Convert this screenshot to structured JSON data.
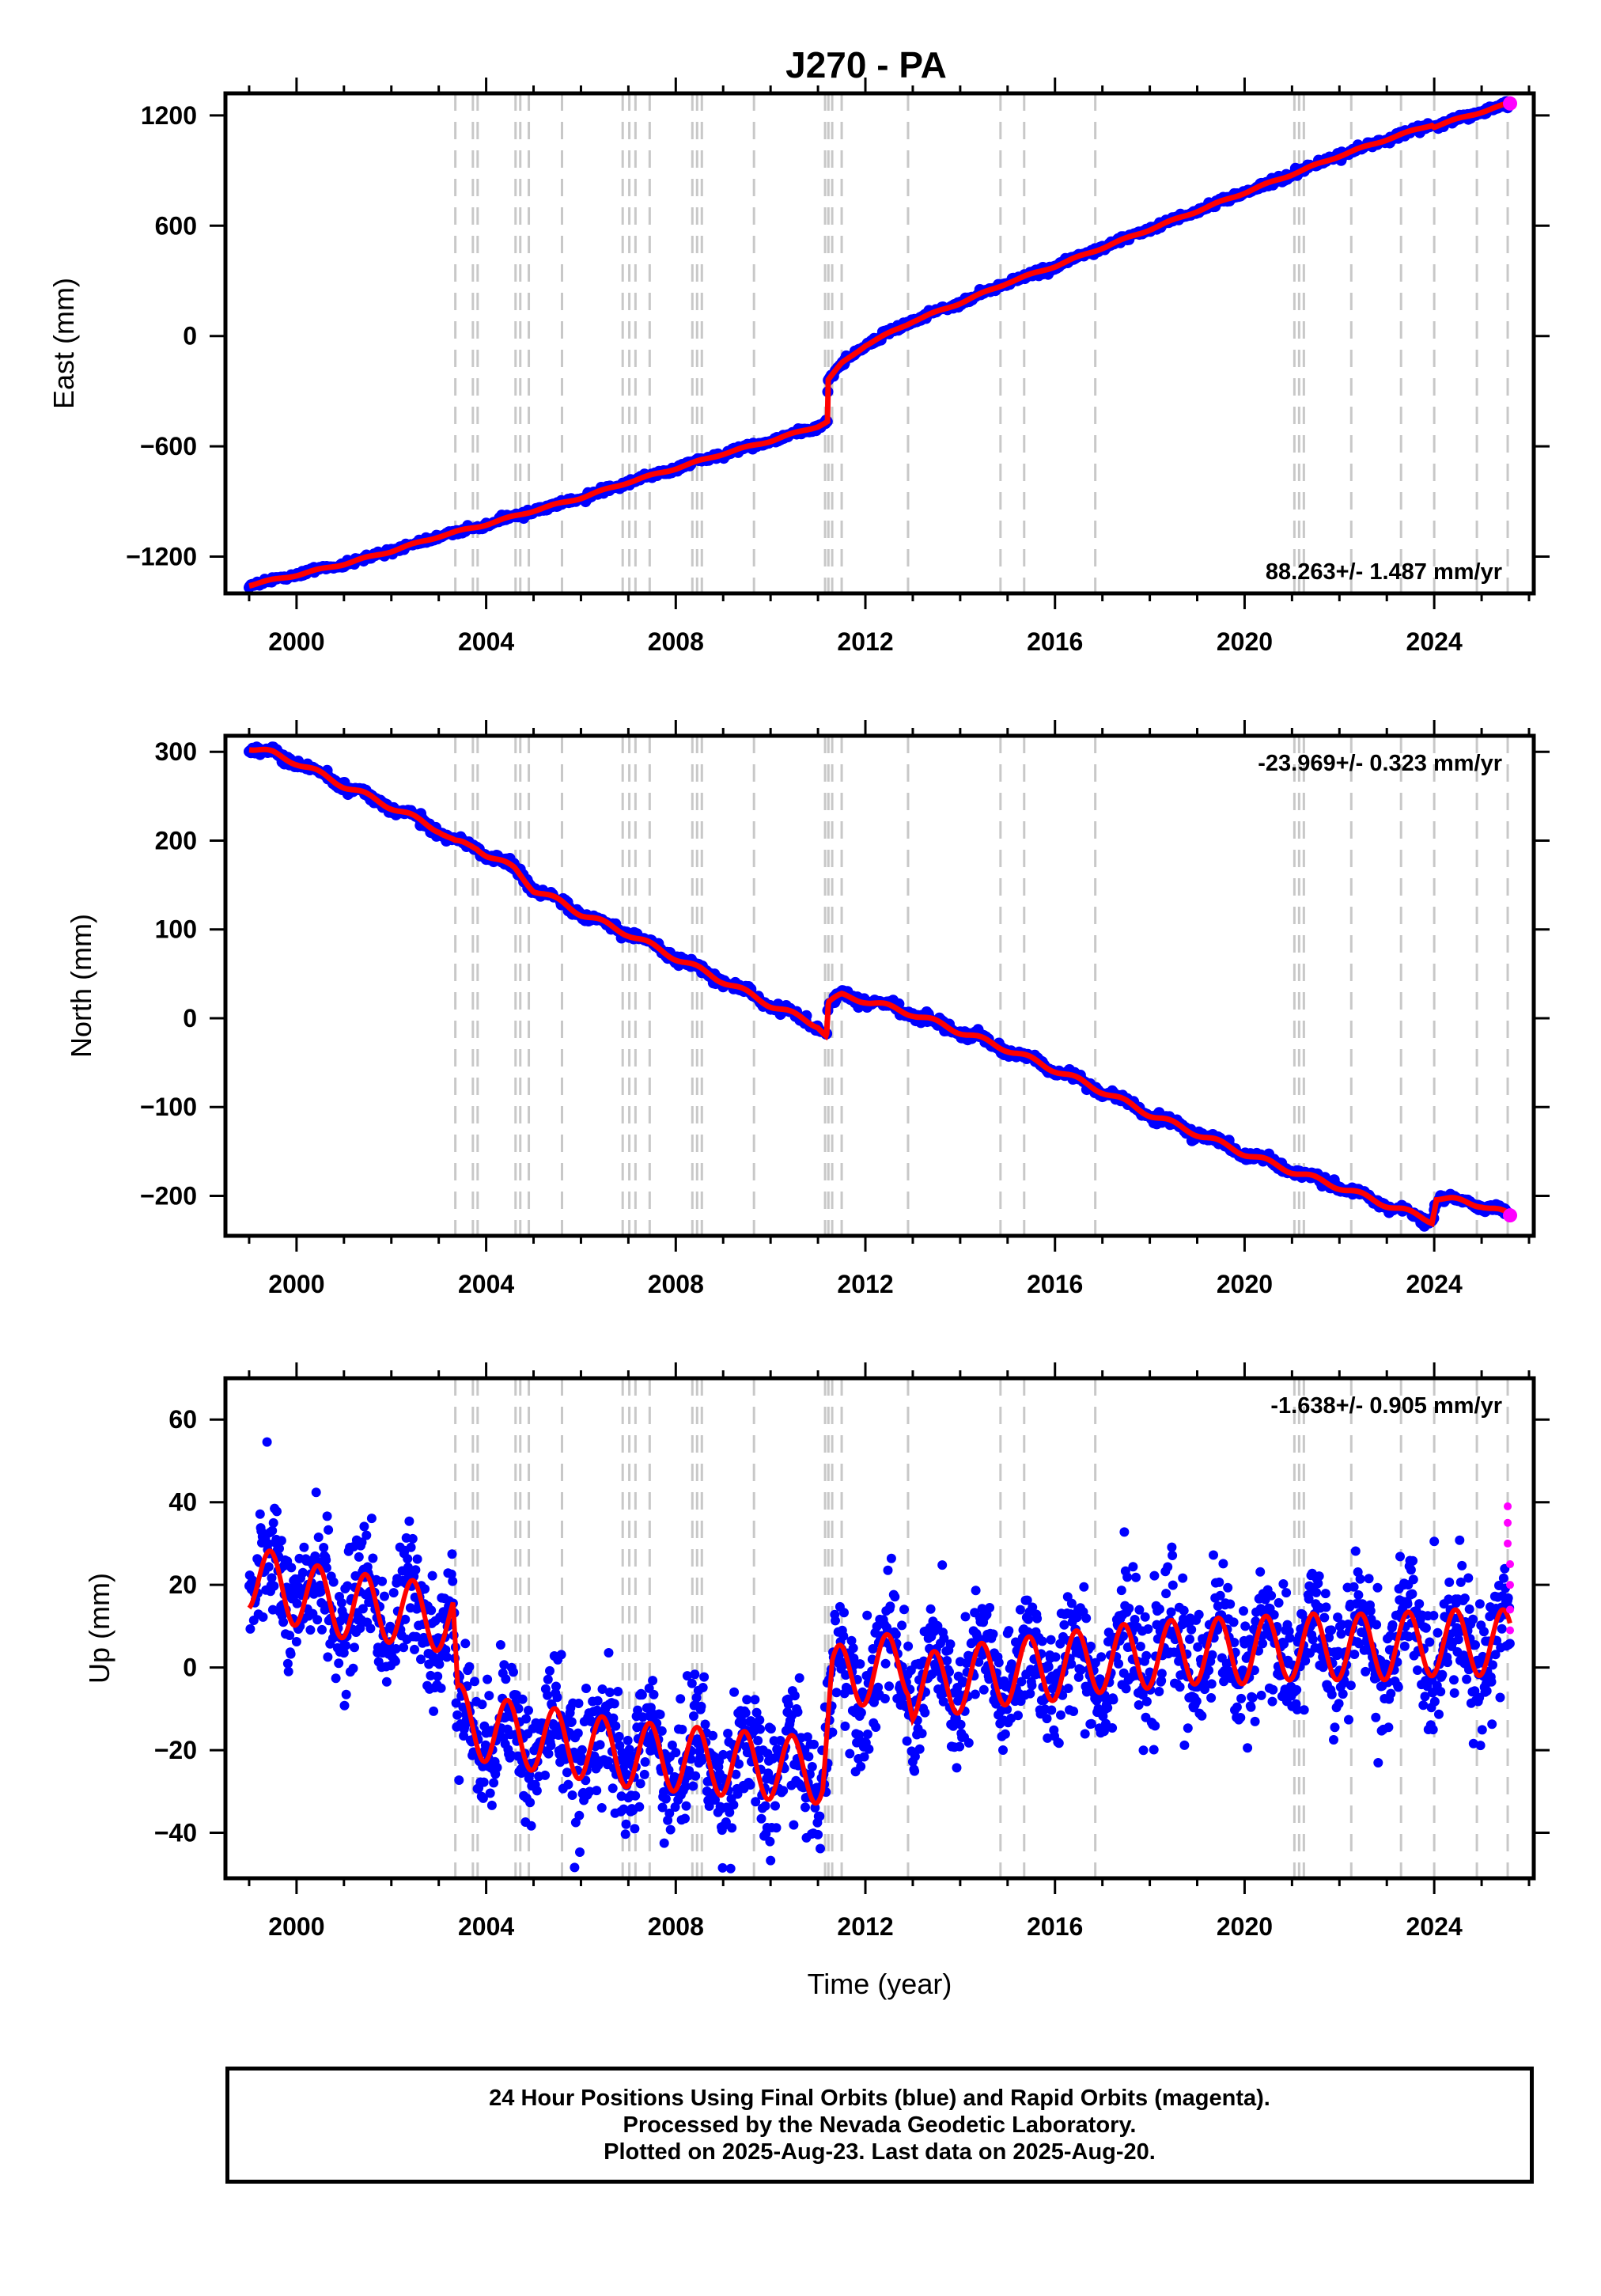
{
  "title": "J270 - PA",
  "caption": {
    "line1": "24 Hour Positions Using Final Orbits (blue) and Rapid Orbits (magenta).",
    "line2": "Processed by the Nevada Geodetic Laboratory.",
    "line3": "Plotted on 2025-Aug-23. Last data on 2025-Aug-20."
  },
  "colors": {
    "final_orbits": "#0000ff",
    "rapid_orbits": "#ff00ff",
    "model": "#ff0000",
    "event_lines": "#c8c8c8"
  },
  "event_years": [
    2003.35,
    2003.72,
    2003.82,
    2004.62,
    2004.72,
    2004.9,
    2005.6,
    2006.88,
    2007.02,
    2007.15,
    2007.45,
    2008.35,
    2008.45,
    2008.55,
    2009.65,
    2011.15,
    2011.22,
    2011.3,
    2011.5,
    2012.9,
    2014.85,
    2015.35,
    2016.85,
    2021.05,
    2021.15,
    2021.25,
    2022.25,
    2023.3,
    2024.0,
    2024.9,
    2025.55
  ],
  "chart_data": [
    {
      "type": "scatter",
      "panel": "east",
      "title": "J270 - PA",
      "xlabel": "",
      "ylabel": "East (mm)",
      "xlim": [
        1998.5,
        2026.1
      ],
      "ylim": [
        -1400,
        1320
      ],
      "xticks": [
        2000,
        2004,
        2008,
        2012,
        2016,
        2020,
        2024
      ],
      "yticks": [
        -1200,
        -600,
        0,
        600,
        1200
      ],
      "ytick_labels": [
        "−1200",
        "−600",
        "0",
        "600",
        "1200"
      ],
      "rate_text": "88.263+/- 1.487 mm/yr",
      "rate_position": "bottom-right",
      "grid": false,
      "series": [
        {
          "values": [
            [
              1999.0,
              -1355
            ],
            [
              2000.0,
              -1300
            ],
            [
              2001.0,
              -1240
            ],
            [
              2002.0,
              -1170
            ],
            [
              2003.0,
              -1090
            ],
            [
              2004.0,
              -1025
            ],
            [
              2005.0,
              -950
            ],
            [
              2006.0,
              -880
            ],
            [
              2007.0,
              -795
            ],
            [
              2008.0,
              -720
            ],
            [
              2009.0,
              -640
            ],
            [
              2010.0,
              -570
            ],
            [
              2011.0,
              -490
            ],
            [
              2011.2,
              -465
            ],
            [
              2011.21,
              -240
            ],
            [
              2011.5,
              -150
            ],
            [
              2012.0,
              -50
            ],
            [
              2013.0,
              80
            ],
            [
              2014.0,
              180
            ],
            [
              2015.0,
              290
            ],
            [
              2016.0,
              380
            ],
            [
              2017.0,
              480
            ],
            [
              2018.0,
              580
            ],
            [
              2019.0,
              680
            ],
            [
              2020.0,
              780
            ],
            [
              2021.0,
              880
            ],
            [
              2022.0,
              980
            ],
            [
              2023.0,
              1070
            ],
            [
              2023.95,
              1150
            ],
            [
              2024.0,
              1140
            ],
            [
              2025.0,
              1220
            ],
            [
              2025.6,
              1265
            ]
          ]
        }
      ]
    },
    {
      "type": "scatter",
      "panel": "north",
      "xlabel": "",
      "ylabel": "North (mm)",
      "xlim": [
        1998.5,
        2026.1
      ],
      "ylim": [
        -245,
        318
      ],
      "xticks": [
        2000,
        2004,
        2008,
        2012,
        2016,
        2020,
        2024
      ],
      "yticks": [
        -200,
        -100,
        0,
        100,
        200,
        300
      ],
      "ytick_labels": [
        "−200",
        "−100",
        "0",
        "100",
        "200",
        "300"
      ],
      "rate_text": "-23.969+/- 0.323 mm/yr",
      "rate_position": "top-right",
      "grid": false,
      "series": [
        {
          "values": [
            [
              1999.0,
              305
            ],
            [
              1999.5,
              298
            ],
            [
              2000.0,
              288
            ],
            [
              2001.0,
              262
            ],
            [
              2002.0,
              238
            ],
            [
              2003.0,
              212
            ],
            [
              2003.35,
              198
            ],
            [
              2003.8,
              192
            ],
            [
              2004.0,
              185
            ],
            [
              2004.6,
              168
            ],
            [
              2004.75,
              160
            ],
            [
              2005.0,
              145
            ],
            [
              2005.6,
              130
            ],
            [
              2006.0,
              118
            ],
            [
              2007.0,
              95
            ],
            [
              2008.0,
              68
            ],
            [
              2009.0,
              42
            ],
            [
              2010.0,
              15
            ],
            [
              2011.0,
              -8
            ],
            [
              2011.18,
              -20
            ],
            [
              2011.22,
              18
            ],
            [
              2011.5,
              25
            ],
            [
              2012.0,
              20
            ],
            [
              2013.0,
              5
            ],
            [
              2014.0,
              -15
            ],
            [
              2015.0,
              -35
            ],
            [
              2016.0,
              -58
            ],
            [
              2017.0,
              -82
            ],
            [
              2018.0,
              -108
            ],
            [
              2019.0,
              -130
            ],
            [
              2020.0,
              -152
            ],
            [
              2021.0,
              -172
            ],
            [
              2022.0,
              -190
            ],
            [
              2023.0,
              -210
            ],
            [
              2023.95,
              -228
            ],
            [
              2024.05,
              -202
            ],
            [
              2025.0,
              -210
            ],
            [
              2025.6,
              -222
            ]
          ]
        }
      ]
    },
    {
      "type": "scatter",
      "panel": "up",
      "xlabel": "Time (year)",
      "ylabel": "Up (mm)",
      "xlim": [
        1998.5,
        2026.1
      ],
      "ylim": [
        -51,
        70
      ],
      "xticks": [
        2000,
        2004,
        2008,
        2012,
        2016,
        2020,
        2024
      ],
      "yticks": [
        -40,
        -20,
        0,
        20,
        40,
        60
      ],
      "ytick_labels": [
        "−40",
        "−20",
        "0",
        "20",
        "40",
        "60"
      ],
      "rate_text": "-1.638+/- 0.905 mm/yr",
      "rate_position": "top-right",
      "grid": false,
      "series": [
        {
          "values": [
            [
              1999.0,
              22
            ],
            [
              2000.0,
              18
            ],
            [
              2001.0,
              15
            ],
            [
              2002.0,
              14
            ],
            [
              2003.0,
              12
            ],
            [
              2003.3,
              11
            ],
            [
              2003.4,
              -12
            ],
            [
              2004.0,
              -15
            ],
            [
              2005.0,
              -17
            ],
            [
              2006.0,
              -19
            ],
            [
              2007.0,
              -21
            ],
            [
              2008.0,
              -22
            ],
            [
              2009.0,
              -23
            ],
            [
              2010.0,
              -24
            ],
            [
              2011.1,
              -25
            ],
            [
              2011.3,
              -3
            ],
            [
              2012.0,
              -1
            ],
            [
              2012.9,
              1
            ],
            [
              2013.0,
              -5
            ],
            [
              2014.0,
              -3
            ],
            [
              2015.0,
              -1
            ],
            [
              2016.0,
              0
            ],
            [
              2017.0,
              2
            ],
            [
              2018.0,
              3
            ],
            [
              2019.0,
              4
            ],
            [
              2020.0,
              4
            ],
            [
              2021.0,
              5
            ],
            [
              2022.0,
              5
            ],
            [
              2023.0,
              5
            ],
            [
              2024.0,
              6
            ],
            [
              2025.0,
              6
            ],
            [
              2025.6,
              6
            ]
          ]
        }
      ],
      "rapid_orbit_points": [
        [
          2025.55,
          39
        ],
        [
          2025.55,
          35
        ],
        [
          2025.55,
          30
        ],
        [
          2025.6,
          25
        ],
        [
          2025.6,
          20
        ],
        [
          2025.6,
          14
        ],
        [
          2025.6,
          9
        ]
      ]
    }
  ]
}
